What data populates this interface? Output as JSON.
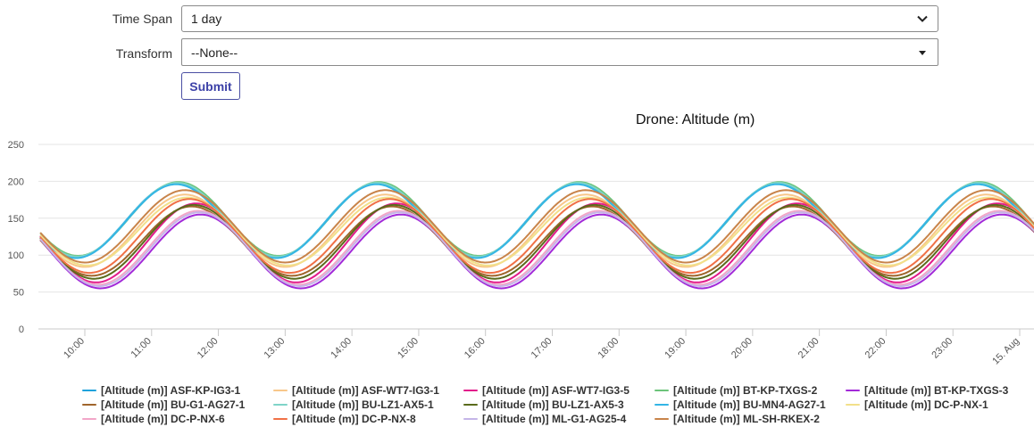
{
  "form": {
    "time_span_label": "Time Span",
    "time_span_value": "1 day",
    "transform_label": "Transform",
    "transform_value": "--None--",
    "submit_label": "Submit"
  },
  "chart_data": {
    "type": "line",
    "title": "Drone: Altitude (m)",
    "xlabel": "",
    "ylabel": "",
    "ylim": [
      0,
      250
    ],
    "yticks": [
      0,
      50,
      100,
      150,
      200,
      250
    ],
    "xlim": [
      "09:20",
      "15. Aug 00:15"
    ],
    "xticks": [
      "10:00",
      "11:00",
      "12:00",
      "13:00",
      "14:00",
      "15:00",
      "16:00",
      "17:00",
      "18:00",
      "19:00",
      "20:00",
      "21:00",
      "22:00",
      "23:00",
      "15. Aug"
    ],
    "grid": true,
    "legend_position": "bottom",
    "period_hours": 3,
    "series": [
      {
        "name": "[Altitude (m)] ASF-KP-IG3-1",
        "color": "#1fa2dc",
        "min": 97,
        "max": 197,
        "peak_time": "11:22"
      },
      {
        "name": "[Altitude (m)] ASF-WT7-IG3-1",
        "color": "#f8c78a",
        "min": 84,
        "max": 182,
        "peak_time": "11:30"
      },
      {
        "name": "[Altitude (m)] ASF-WT7-IG3-5",
        "color": "#e21b8a",
        "min": 63,
        "max": 170,
        "peak_time": "11:40"
      },
      {
        "name": "[Altitude (m)] BT-KP-TXGS-2",
        "color": "#6cc47a",
        "min": 99,
        "max": 199,
        "peak_time": "11:24"
      },
      {
        "name": "[Altitude (m)] BT-KP-TXGS-3",
        "color": "#a22ad8",
        "min": 55,
        "max": 155,
        "peak_time": "11:44"
      },
      {
        "name": "[Altitude (m)] BU-G1-AG27-1",
        "color": "#a0652c",
        "min": 72,
        "max": 166,
        "peak_time": "11:36"
      },
      {
        "name": "[Altitude (m)] BU-LZ1-AX5-1",
        "color": "#7fd4c8",
        "min": 98,
        "max": 198,
        "peak_time": "11:23"
      },
      {
        "name": "[Altitude (m)] BU-LZ1-AX5-3",
        "color": "#5a6b1c",
        "min": 68,
        "max": 168,
        "peak_time": "11:38"
      },
      {
        "name": "[Altitude (m)] BU-MN4-AG27-1",
        "color": "#33b5e5",
        "min": 96,
        "max": 196,
        "peak_time": "11:22"
      },
      {
        "name": "[Altitude (m)] DC-P-NX-1",
        "color": "#f2e08a",
        "min": 86,
        "max": 178,
        "peak_time": "11:32"
      },
      {
        "name": "[Altitude (m)] DC-P-NX-6",
        "color": "#f2a6c8",
        "min": 60,
        "max": 160,
        "peak_time": "11:42"
      },
      {
        "name": "[Altitude (m)] DC-P-NX-8",
        "color": "#f07046",
        "min": 76,
        "max": 176,
        "peak_time": "11:34"
      },
      {
        "name": "[Altitude (m)] ML-G1-AG25-4",
        "color": "#c4b5e8",
        "min": 58,
        "max": 158,
        "peak_time": "11:43"
      },
      {
        "name": "[Altitude (m)] ML-SH-RKEX-2",
        "color": "#c8844a",
        "min": 90,
        "max": 188,
        "peak_time": "11:30"
      }
    ]
  }
}
